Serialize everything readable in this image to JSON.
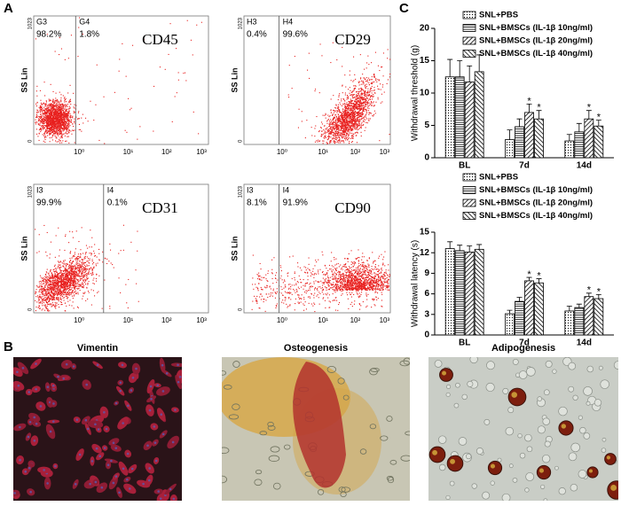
{
  "panel_labels": [
    "A",
    "B",
    "C"
  ],
  "flow_axis": {
    "y_label": "SS Lin",
    "y_ticks": [
      "1023",
      "0"
    ],
    "x_ticks": [
      "10⁰",
      "10¹",
      "10²",
      "10³"
    ]
  },
  "flow_plots": [
    {
      "marker": "CD45",
      "gates": [
        {
          "name": "G3",
          "percent": "98.2%"
        },
        {
          "name": "G4",
          "percent": "1.8%"
        }
      ]
    },
    {
      "marker": "CD29",
      "gates": [
        {
          "name": "H3",
          "percent": "0.4%"
        },
        {
          "name": "H4",
          "percent": "99.6%"
        }
      ]
    },
    {
      "marker": "CD31",
      "gates": [
        {
          "name": "I3",
          "percent": "99.9%"
        },
        {
          "name": "I4",
          "percent": "0.1%"
        }
      ]
    },
    {
      "marker": "CD90",
      "gates": [
        {
          "name": "I3",
          "percent": "8.1%"
        },
        {
          "name": "I4",
          "percent": "91.9%"
        }
      ]
    }
  ],
  "images": [
    {
      "title": "Vimentin"
    },
    {
      "title": "Osteogenesis"
    },
    {
      "title": "Adipogenesis"
    }
  ],
  "chart_data": [
    {
      "type": "bar",
      "y_label": "Withdrawal threshold (g)",
      "categories": [
        "BL",
        "7d",
        "14d"
      ],
      "ylim": [
        0,
        20
      ],
      "yticks": [
        0,
        5,
        10,
        15,
        20
      ],
      "series": [
        {
          "name": "SNL+PBS",
          "color": "#000000",
          "pattern": "dots",
          "values": [
            12.5,
            2.8,
            2.6
          ],
          "errors": [
            2.7,
            1.5,
            1.0
          ],
          "markers": [
            null,
            null,
            null
          ]
        },
        {
          "name": "SNL+BMSCs (IL-1β 10ng/ml)",
          "color": "#000000",
          "pattern": "horizontal",
          "values": [
            12.5,
            4.8,
            4.0
          ],
          "errors": [
            2.5,
            1.2,
            1.3
          ],
          "markers": [
            null,
            null,
            null
          ]
        },
        {
          "name": "SNL+BMSCs (IL-1β 20ng/ml)",
          "color": "#000000",
          "pattern": "diagonal-up",
          "values": [
            11.7,
            7.0,
            6.0
          ],
          "errors": [
            2.5,
            1.3,
            1.3
          ],
          "markers": [
            null,
            "*",
            "*"
          ]
        },
        {
          "name": "SNL+BMSCs (IL-1β 40ng/ml)",
          "color": "#000000",
          "pattern": "diagonal-down",
          "values": [
            13.3,
            6.0,
            4.9
          ],
          "errors": [
            2.6,
            1.3,
            0.9
          ],
          "markers": [
            null,
            "*",
            "*"
          ]
        }
      ]
    },
    {
      "type": "bar",
      "y_label": "Withdrawal latency (s)",
      "categories": [
        "BL",
        "7d",
        "14d"
      ],
      "ylim": [
        0,
        15
      ],
      "yticks": [
        0,
        3,
        6,
        9,
        12,
        15
      ],
      "series": [
        {
          "name": "SNL+PBS",
          "color": "#000000",
          "pattern": "dots",
          "values": [
            12.6,
            3.1,
            3.5
          ],
          "errors": [
            1.0,
            0.5,
            0.7
          ],
          "markers": [
            null,
            null,
            null
          ]
        },
        {
          "name": "SNL+BMSCs (IL-1β 10ng/ml)",
          "color": "#000000",
          "pattern": "horizontal",
          "values": [
            12.3,
            4.9,
            4.0
          ],
          "errors": [
            0.8,
            0.6,
            0.5
          ],
          "markers": [
            null,
            null,
            null
          ]
        },
        {
          "name": "SNL+BMSCs (IL-1β 20ng/ml)",
          "color": "#000000",
          "pattern": "diagonal-up",
          "values": [
            12.1,
            7.9,
            5.6
          ],
          "errors": [
            0.9,
            0.5,
            0.5
          ],
          "markers": [
            null,
            "*",
            "*"
          ]
        },
        {
          "name": "SNL+BMSCs (IL-1β 40ng/ml)",
          "color": "#000000",
          "pattern": "diagonal-down",
          "values": [
            12.5,
            7.6,
            5.3
          ],
          "errors": [
            0.7,
            0.6,
            0.6
          ],
          "markers": [
            null,
            "*",
            "*"
          ]
        }
      ]
    }
  ]
}
